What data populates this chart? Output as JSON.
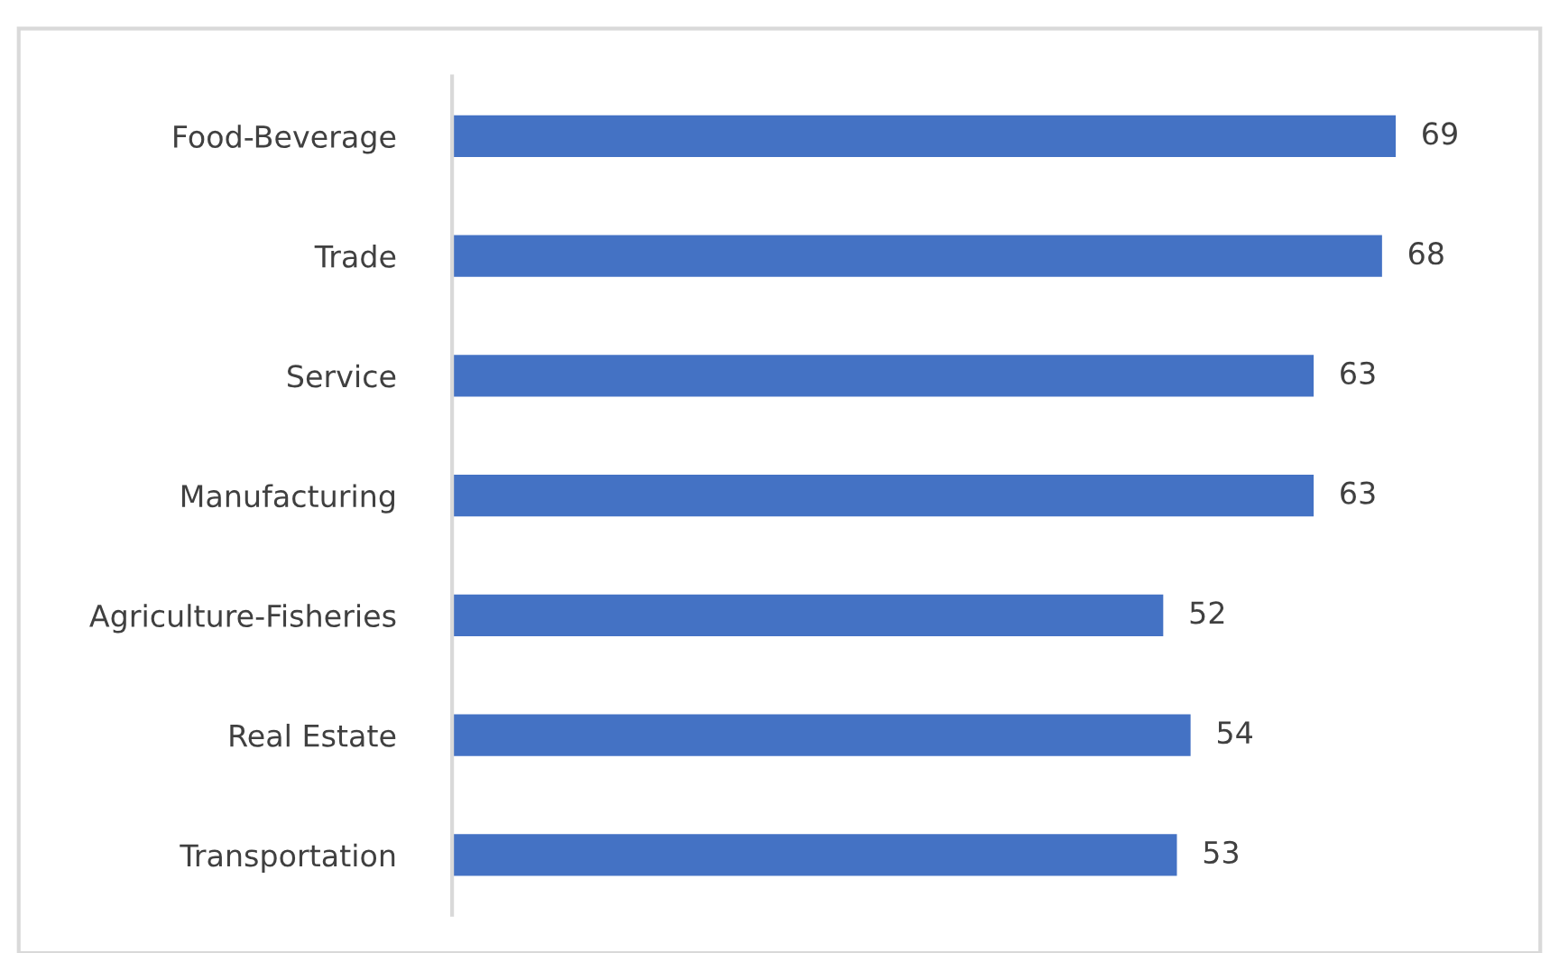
{
  "chart_data": {
    "type": "bar",
    "orientation": "horizontal",
    "categories": [
      "Food-Beverage",
      "Trade",
      "Service",
      "Manufacturing",
      "Agriculture-Fisheries",
      "Real Estate",
      "Transportation"
    ],
    "values": [
      69,
      68,
      63,
      63,
      52,
      54,
      53
    ],
    "color": "#4472c4",
    "data_labels": true,
    "grid": false,
    "tick_labels": "y"
  }
}
